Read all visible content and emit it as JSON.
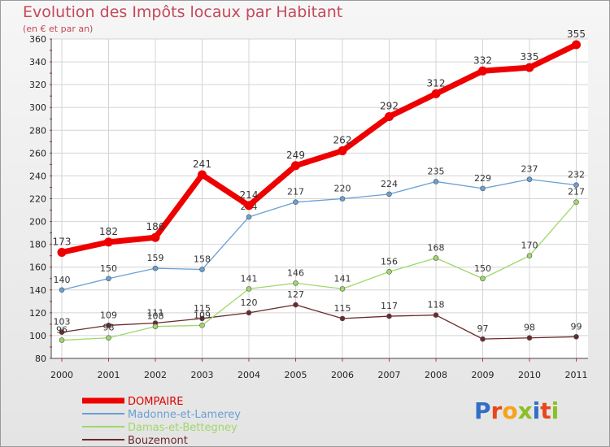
{
  "title": "Evolution des Impôts locaux par Habitant",
  "subtitle": "(en € et par an)",
  "logo": {
    "text": "Proxiti",
    "colors": [
      "#2f6fc4",
      "#e8461d",
      "#f6a21a",
      "#8bbf26",
      "#2f6fc4",
      "#e8461d",
      "#8bbf26"
    ]
  },
  "chart_data": {
    "type": "line",
    "x": [
      "2000",
      "2001",
      "2002",
      "2003",
      "2004",
      "2005",
      "2006",
      "2007",
      "2008",
      "2009",
      "2010",
      "2011"
    ],
    "ylim": [
      80,
      360
    ],
    "yticks": [
      80,
      100,
      120,
      140,
      160,
      180,
      200,
      220,
      240,
      260,
      280,
      300,
      320,
      340,
      360
    ],
    "grid": true,
    "legend_position": "bottom-left",
    "series": [
      {
        "name": "DOMPAIRE",
        "color": "#ee0000",
        "values": [
          173,
          182,
          186,
          241,
          214,
          249,
          262,
          292,
          312,
          332,
          335,
          355
        ]
      },
      {
        "name": "Madonne-et-Lamerey",
        "color": "#6a9fd4",
        "values": [
          140,
          150,
          159,
          158,
          204,
          217,
          220,
          224,
          235,
          229,
          237,
          232
        ]
      },
      {
        "name": "Damas-et-Bettegney",
        "color": "#9fd86a",
        "values": [
          96,
          98,
          108,
          109,
          141,
          146,
          141,
          156,
          168,
          150,
          170,
          217
        ]
      },
      {
        "name": "Bouzemont",
        "color": "#6b2a2a",
        "values": [
          103,
          109,
          111,
          115,
          120,
          127,
          115,
          117,
          118,
          97,
          98,
          99
        ]
      }
    ]
  }
}
